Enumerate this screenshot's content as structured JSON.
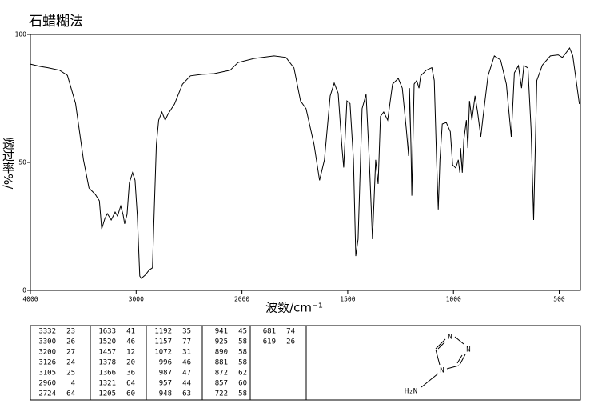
{
  "chart_data": {
    "type": "line",
    "title": "石蜡糊法",
    "x_label": "波数/cm⁻¹",
    "y_label": "透过率%/",
    "color": "#000000",
    "xlim": [
      4000,
      400
    ],
    "xticks": [
      4000,
      3000,
      2000,
      1500,
      1000,
      500
    ],
    "ylim": [
      0,
      100
    ],
    "yticks": [
      0,
      50,
      100
    ],
    "x": [
      4000,
      3910,
      3835,
      3723,
      3650,
      3573,
      3498,
      3446,
      3386,
      3348,
      3326,
      3296,
      3273,
      3236,
      3199,
      3176,
      3146,
      3124,
      3109,
      3086,
      3064,
      3034,
      3011,
      2989,
      2966,
      2951,
      2914,
      2876,
      2846,
      2831,
      2809,
      2787,
      2757,
      2726,
      2697,
      2637,
      2562,
      2487,
      2375,
      2262,
      2112,
      2037,
      1943,
      1848,
      1792,
      1754,
      1723,
      1697,
      1659,
      1633,
      1610,
      1583,
      1564,
      1545,
      1527,
      1519,
      1504,
      1489,
      1473,
      1462,
      1451,
      1432,
      1413,
      1398,
      1383,
      1368,
      1356,
      1345,
      1330,
      1311,
      1288,
      1261,
      1242,
      1223,
      1212,
      1208,
      1201,
      1197,
      1186,
      1174,
      1163,
      1155,
      1129,
      1102,
      1091,
      1080,
      1072,
      1064,
      1053,
      1034,
      1015,
      1004,
      989,
      977,
      970,
      966,
      958,
      951,
      939,
      932,
      924,
      913,
      898,
      886,
      871,
      860,
      837,
      807,
      777,
      750,
      727,
      712,
      693,
      678,
      667,
      648,
      633,
      621,
      606,
      580,
      542,
      505,
      485,
      466,
      451,
      436,
      420,
      405
    ],
    "values": [
      88.4,
      87.5,
      87,
      86,
      84,
      73,
      51,
      40,
      37.5,
      35,
      24,
      28,
      30,
      27.5,
      30.6,
      29,
      33,
      29.7,
      26,
      29.7,
      42,
      46,
      43,
      29,
      5.6,
      4.7,
      6,
      8,
      8.8,
      29,
      57,
      66.5,
      69.7,
      66.5,
      69,
      72.8,
      80.6,
      83.8,
      84.4,
      84.7,
      86,
      89,
      90.6,
      91.6,
      91,
      86.9,
      74,
      71,
      57,
      43,
      51,
      76,
      81,
      77,
      55.6,
      48,
      74,
      73,
      51,
      13.4,
      20,
      71,
      76.6,
      51,
      20,
      51,
      41.6,
      68,
      69.7,
      66.5,
      80.6,
      82.8,
      79,
      63,
      52.5,
      79,
      57,
      37,
      80.6,
      82,
      79,
      83.8,
      86,
      87,
      82,
      51,
      31.6,
      51,
      65,
      65.6,
      62,
      49,
      47.8,
      51,
      46,
      55.6,
      46,
      58.8,
      66.5,
      55.6,
      74,
      66.5,
      76,
      69.7,
      60,
      68,
      83.8,
      91.6,
      90,
      80.6,
      60,
      85,
      87.8,
      79,
      87.8,
      86.9,
      63,
      27.5,
      82,
      88,
      91.6,
      92,
      91,
      93,
      94.7,
      91.6,
      82,
      72.8
    ]
  },
  "peak_table": [
    [
      [
        "3332",
        "23"
      ],
      [
        "3300",
        "26"
      ],
      [
        "3200",
        "27"
      ],
      [
        "3126",
        "24"
      ],
      [
        "3105",
        "25"
      ],
      [
        "2960",
        "4"
      ],
      [
        "2724",
        "64"
      ]
    ],
    [
      [
        "1633",
        "41"
      ],
      [
        "1520",
        "46"
      ],
      [
        "1457",
        "12"
      ],
      [
        "1378",
        "20"
      ],
      [
        "1366",
        "36"
      ],
      [
        "1321",
        "64"
      ],
      [
        "1205",
        "60"
      ]
    ],
    [
      [
        "1192",
        "35"
      ],
      [
        "1157",
        "77"
      ],
      [
        "1072",
        "31"
      ],
      [
        "996",
        "46"
      ],
      [
        "987",
        "47"
      ],
      [
        "957",
        "44"
      ],
      [
        "948",
        "63"
      ]
    ],
    [
      [
        "941",
        "45"
      ],
      [
        "925",
        "58"
      ],
      [
        "890",
        "58"
      ],
      [
        "881",
        "58"
      ],
      [
        "872",
        "62"
      ],
      [
        "857",
        "60"
      ],
      [
        "722",
        "58"
      ]
    ],
    [
      [
        "681",
        "74"
      ],
      [
        "619",
        "26"
      ]
    ]
  ],
  "molecule": {
    "labels": [
      "N",
      "N",
      "N",
      "H₂N"
    ]
  }
}
